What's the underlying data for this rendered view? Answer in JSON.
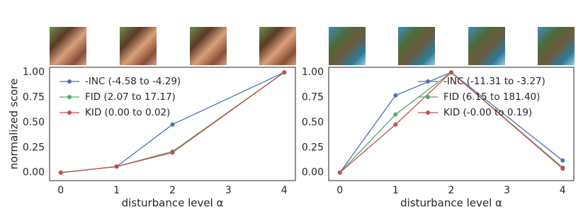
{
  "chart_data": [
    {
      "type": "line",
      "ylabel": "normalized score",
      "xlabel": "disturbance level α",
      "xlim": [
        -0.2,
        4.2
      ],
      "ylim": [
        -0.08,
        1.05
      ],
      "xticks": [
        0,
        1,
        2,
        3,
        4
      ],
      "yticks": [
        {
          "value": 0,
          "label": "0.00"
        },
        {
          "value": 0.25,
          "label": "0.25"
        },
        {
          "value": 0.5,
          "label": "0.50"
        },
        {
          "value": 0.75,
          "label": "0.75"
        },
        {
          "value": 1,
          "label": "1.00"
        }
      ],
      "grid": false,
      "legend": "upper left",
      "x": [
        0,
        1,
        2,
        4
      ],
      "series": [
        {
          "name": "-INC (-4.58 to -4.29)",
          "color": "#4c72b0",
          "values": [
            0,
            0.06,
            0.48,
            1.0
          ]
        },
        {
          "name": "FID (2.07 to 17.17)",
          "color": "#55a868",
          "values": [
            0,
            0.06,
            0.21,
            1.0
          ]
        },
        {
          "name": "KID (0.00 to 0.02)",
          "color": "#c44e52",
          "values": [
            0,
            0.06,
            0.2,
            1.0
          ]
        }
      ]
    },
    {
      "type": "line",
      "xlabel": "disturbance level α",
      "xlim": [
        -0.2,
        4.2
      ],
      "ylim": [
        -0.08,
        1.05
      ],
      "xticks": [
        0,
        1,
        2,
        3,
        4
      ],
      "yticks": [
        {
          "value": 0,
          "label": "0.00"
        },
        {
          "value": 0.25,
          "label": "0.25"
        },
        {
          "value": 0.5,
          "label": "0.50"
        },
        {
          "value": 0.75,
          "label": "0.75"
        },
        {
          "value": 1,
          "label": "1.00"
        }
      ],
      "grid": false,
      "legend": "upper right",
      "x": [
        0,
        1,
        2,
        4
      ],
      "series": [
        {
          "name": "-INC (-11.31 to -3.27)",
          "color": "#4c72b0",
          "values": [
            0,
            0.77,
            1.0,
            0.12
          ]
        },
        {
          "name": "FID (6.15 to 181.40)",
          "color": "#55a868",
          "values": [
            0,
            0.58,
            1.0,
            0.05
          ]
        },
        {
          "name": "KID (-0.00 to 0.19)",
          "color": "#c44e52",
          "values": [
            0,
            0.48,
            1.0,
            0.04
          ]
        }
      ]
    }
  ]
}
